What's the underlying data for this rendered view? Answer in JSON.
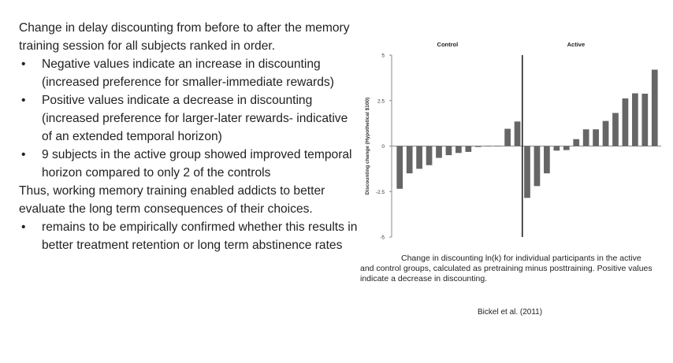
{
  "slide": {
    "intro": "Change in delay discounting from before to after the memory training session for all subjects ranked in order.",
    "bullets": [
      "Negative values indicate an increase in discounting (increased preference for smaller-immediate rewards)",
      "Positive values indicate a decrease in discounting (increased preference for larger-later rewards- indicative of an extended temporal horizon)",
      "9 subjects in the active group showed improved temporal horizon compared to only 2 of the controls"
    ],
    "conclusion": "Thus, working memory training enabled addicts to better evaluate the long term consequences of their choices.",
    "final_bullet": "remains to be empirically confirmed whether this results in better treatment retention or long term abstinence rates",
    "caption_line1": "Change in discounting ln(k) for individual participants in the active",
    "caption_rest": "and control groups, calculated as pretraining minus posttraining. Positive values indicate a decrease in discounting.",
    "citation": "Bickel et al. (2011)"
  },
  "chart_data": {
    "type": "bar",
    "ylabel": "Discounting change (Hypothetical $100)",
    "ylim": [
      -5,
      5
    ],
    "yticks": [
      5,
      2.5,
      0,
      -2.5,
      -5
    ],
    "ytick_labels": [
      "5",
      "2.5",
      "0",
      "-2.5",
      "-5"
    ],
    "groups": [
      "Control",
      "Active"
    ],
    "bar_color": "#666666",
    "series": [
      {
        "name": "Control",
        "values": [
          -2.35,
          -1.5,
          -1.25,
          -1.05,
          -0.65,
          -0.5,
          -0.38,
          -0.32,
          -0.05,
          0.0,
          0.0,
          0.95,
          1.35
        ]
      },
      {
        "name": "Active",
        "values": [
          -2.85,
          -2.2,
          -1.5,
          -0.25,
          -0.22,
          0.38,
          0.92,
          0.92,
          1.38,
          1.82,
          2.62,
          2.9,
          2.88,
          4.2
        ]
      }
    ]
  }
}
